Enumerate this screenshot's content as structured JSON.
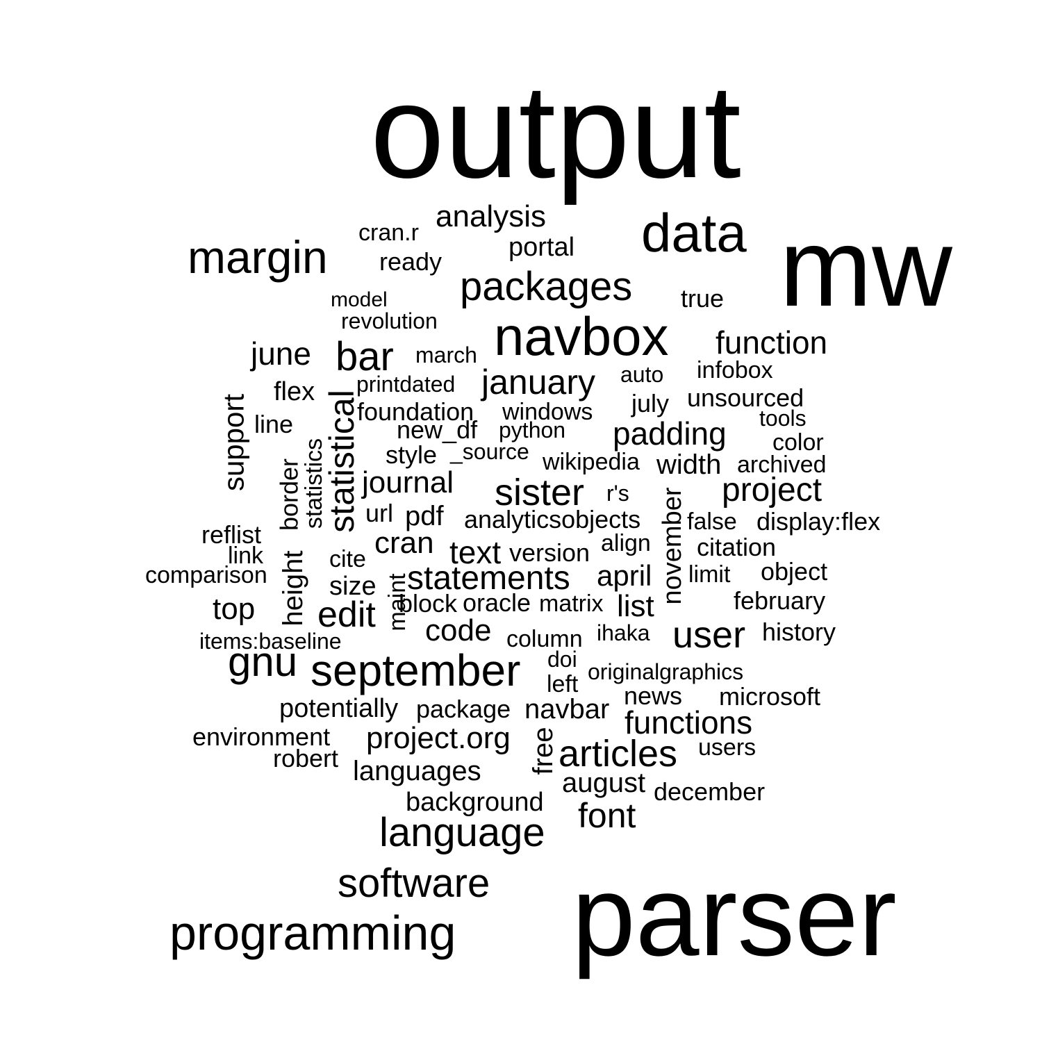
{
  "words": [
    {
      "text": "output",
      "rotated": false
    },
    {
      "text": "mw",
      "rotated": false
    },
    {
      "text": "parser",
      "rotated": false
    },
    {
      "text": "data",
      "rotated": false
    },
    {
      "text": "navbox",
      "rotated": false
    },
    {
      "text": "margin",
      "rotated": false
    },
    {
      "text": "programming",
      "rotated": false
    },
    {
      "text": "software",
      "rotated": false
    },
    {
      "text": "packages",
      "rotated": false
    },
    {
      "text": "analysis",
      "rotated": false
    },
    {
      "text": "portal",
      "rotated": false
    },
    {
      "text": "cran.r",
      "rotated": false
    },
    {
      "text": "ready",
      "rotated": false
    },
    {
      "text": "model",
      "rotated": false
    },
    {
      "text": "true",
      "rotated": false
    },
    {
      "text": "revolution",
      "rotated": false
    },
    {
      "text": "june",
      "rotated": false
    },
    {
      "text": "bar",
      "rotated": false
    },
    {
      "text": "march",
      "rotated": false
    },
    {
      "text": "function",
      "rotated": false
    },
    {
      "text": "infobox",
      "rotated": false
    },
    {
      "text": "auto",
      "rotated": false
    },
    {
      "text": "january",
      "rotated": false
    },
    {
      "text": "printdated",
      "rotated": false
    },
    {
      "text": "flex",
      "rotated": false
    },
    {
      "text": "unsourced",
      "rotated": false
    },
    {
      "text": "july",
      "rotated": false
    },
    {
      "text": "foundation",
      "rotated": false
    },
    {
      "text": "windows",
      "rotated": false
    },
    {
      "text": "tools",
      "rotated": false
    },
    {
      "text": "line",
      "rotated": false
    },
    {
      "text": "new_df",
      "rotated": false
    },
    {
      "text": "python",
      "rotated": false
    },
    {
      "text": "padding",
      "rotated": false
    },
    {
      "text": "color",
      "rotated": false
    },
    {
      "text": "style",
      "rotated": false
    },
    {
      "text": "_source",
      "rotated": false
    },
    {
      "text": "wikipedia",
      "rotated": false
    },
    {
      "text": "width",
      "rotated": false
    },
    {
      "text": "archived",
      "rotated": false
    },
    {
      "text": "journal",
      "rotated": false
    },
    {
      "text": "sister",
      "rotated": false
    },
    {
      "text": "r's",
      "rotated": false
    },
    {
      "text": "project",
      "rotated": false
    },
    {
      "text": "url",
      "rotated": false
    },
    {
      "text": "pdf",
      "rotated": false
    },
    {
      "text": "analyticsobjects",
      "rotated": false
    },
    {
      "text": "false",
      "rotated": false
    },
    {
      "text": "display:flex",
      "rotated": false
    },
    {
      "text": "reflist",
      "rotated": false
    },
    {
      "text": "link",
      "rotated": false
    },
    {
      "text": "cite",
      "rotated": false
    },
    {
      "text": "cran",
      "rotated": false
    },
    {
      "text": "text",
      "rotated": false
    },
    {
      "text": "version",
      "rotated": false
    },
    {
      "text": "align",
      "rotated": false
    },
    {
      "text": "citation",
      "rotated": false
    },
    {
      "text": "comparison",
      "rotated": false
    },
    {
      "text": "size",
      "rotated": false
    },
    {
      "text": "statements",
      "rotated": false
    },
    {
      "text": "april",
      "rotated": false
    },
    {
      "text": "limit",
      "rotated": false
    },
    {
      "text": "object",
      "rotated": false
    },
    {
      "text": "top",
      "rotated": false
    },
    {
      "text": "edit",
      "rotated": false
    },
    {
      "text": "block",
      "rotated": false
    },
    {
      "text": "oracle",
      "rotated": false
    },
    {
      "text": "matrix",
      "rotated": false
    },
    {
      "text": "list",
      "rotated": false
    },
    {
      "text": "february",
      "rotated": false
    },
    {
      "text": "items:baseline",
      "rotated": false
    },
    {
      "text": "code",
      "rotated": false
    },
    {
      "text": "column",
      "rotated": false
    },
    {
      "text": "ihaka",
      "rotated": false
    },
    {
      "text": "user",
      "rotated": false
    },
    {
      "text": "history",
      "rotated": false
    },
    {
      "text": "gnu",
      "rotated": false
    },
    {
      "text": "september",
      "rotated": false
    },
    {
      "text": "doi",
      "rotated": false
    },
    {
      "text": "left",
      "rotated": false
    },
    {
      "text": "originalgraphics",
      "rotated": false
    },
    {
      "text": "news",
      "rotated": false
    },
    {
      "text": "microsoft",
      "rotated": false
    },
    {
      "text": "potentially",
      "rotated": false
    },
    {
      "text": "package",
      "rotated": false
    },
    {
      "text": "navbar",
      "rotated": false
    },
    {
      "text": "functions",
      "rotated": false
    },
    {
      "text": "environment",
      "rotated": false
    },
    {
      "text": "project.org",
      "rotated": false
    },
    {
      "text": "articles",
      "rotated": false
    },
    {
      "text": "users",
      "rotated": false
    },
    {
      "text": "robert",
      "rotated": false
    },
    {
      "text": "languages",
      "rotated": false
    },
    {
      "text": "august",
      "rotated": false
    },
    {
      "text": "december",
      "rotated": false
    },
    {
      "text": "background",
      "rotated": false
    },
    {
      "text": "font",
      "rotated": false
    },
    {
      "text": "language",
      "rotated": false
    },
    {
      "text": "support",
      "rotated": true
    },
    {
      "text": "statistics",
      "rotated": true
    },
    {
      "text": "border",
      "rotated": true
    },
    {
      "text": "height",
      "rotated": true
    },
    {
      "text": "statistical",
      "rotated": true
    },
    {
      "text": "maint",
      "rotated": true
    },
    {
      "text": "november",
      "rotated": true
    },
    {
      "text": "free",
      "rotated": true
    }
  ]
}
